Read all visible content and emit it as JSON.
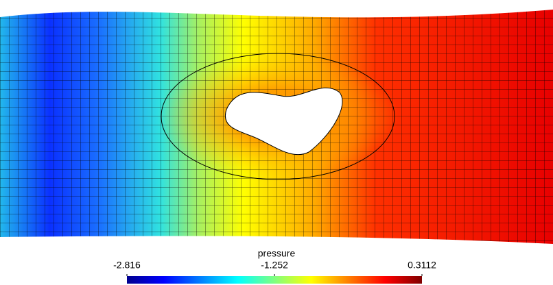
{
  "chart_data": {
    "type": "colorfield",
    "colorbar": {
      "label": "pressure",
      "clim": [
        -2.816,
        0.3112
      ],
      "ticks": [
        -2.816,
        -1.252,
        0.3112
      ],
      "colormap": [
        "#00008f",
        "#0000ff",
        "#0080ff",
        "#00ffff",
        "#80ff80",
        "#ffff00",
        "#ff8000",
        "#ff0000",
        "#800000"
      ]
    }
  }
}
